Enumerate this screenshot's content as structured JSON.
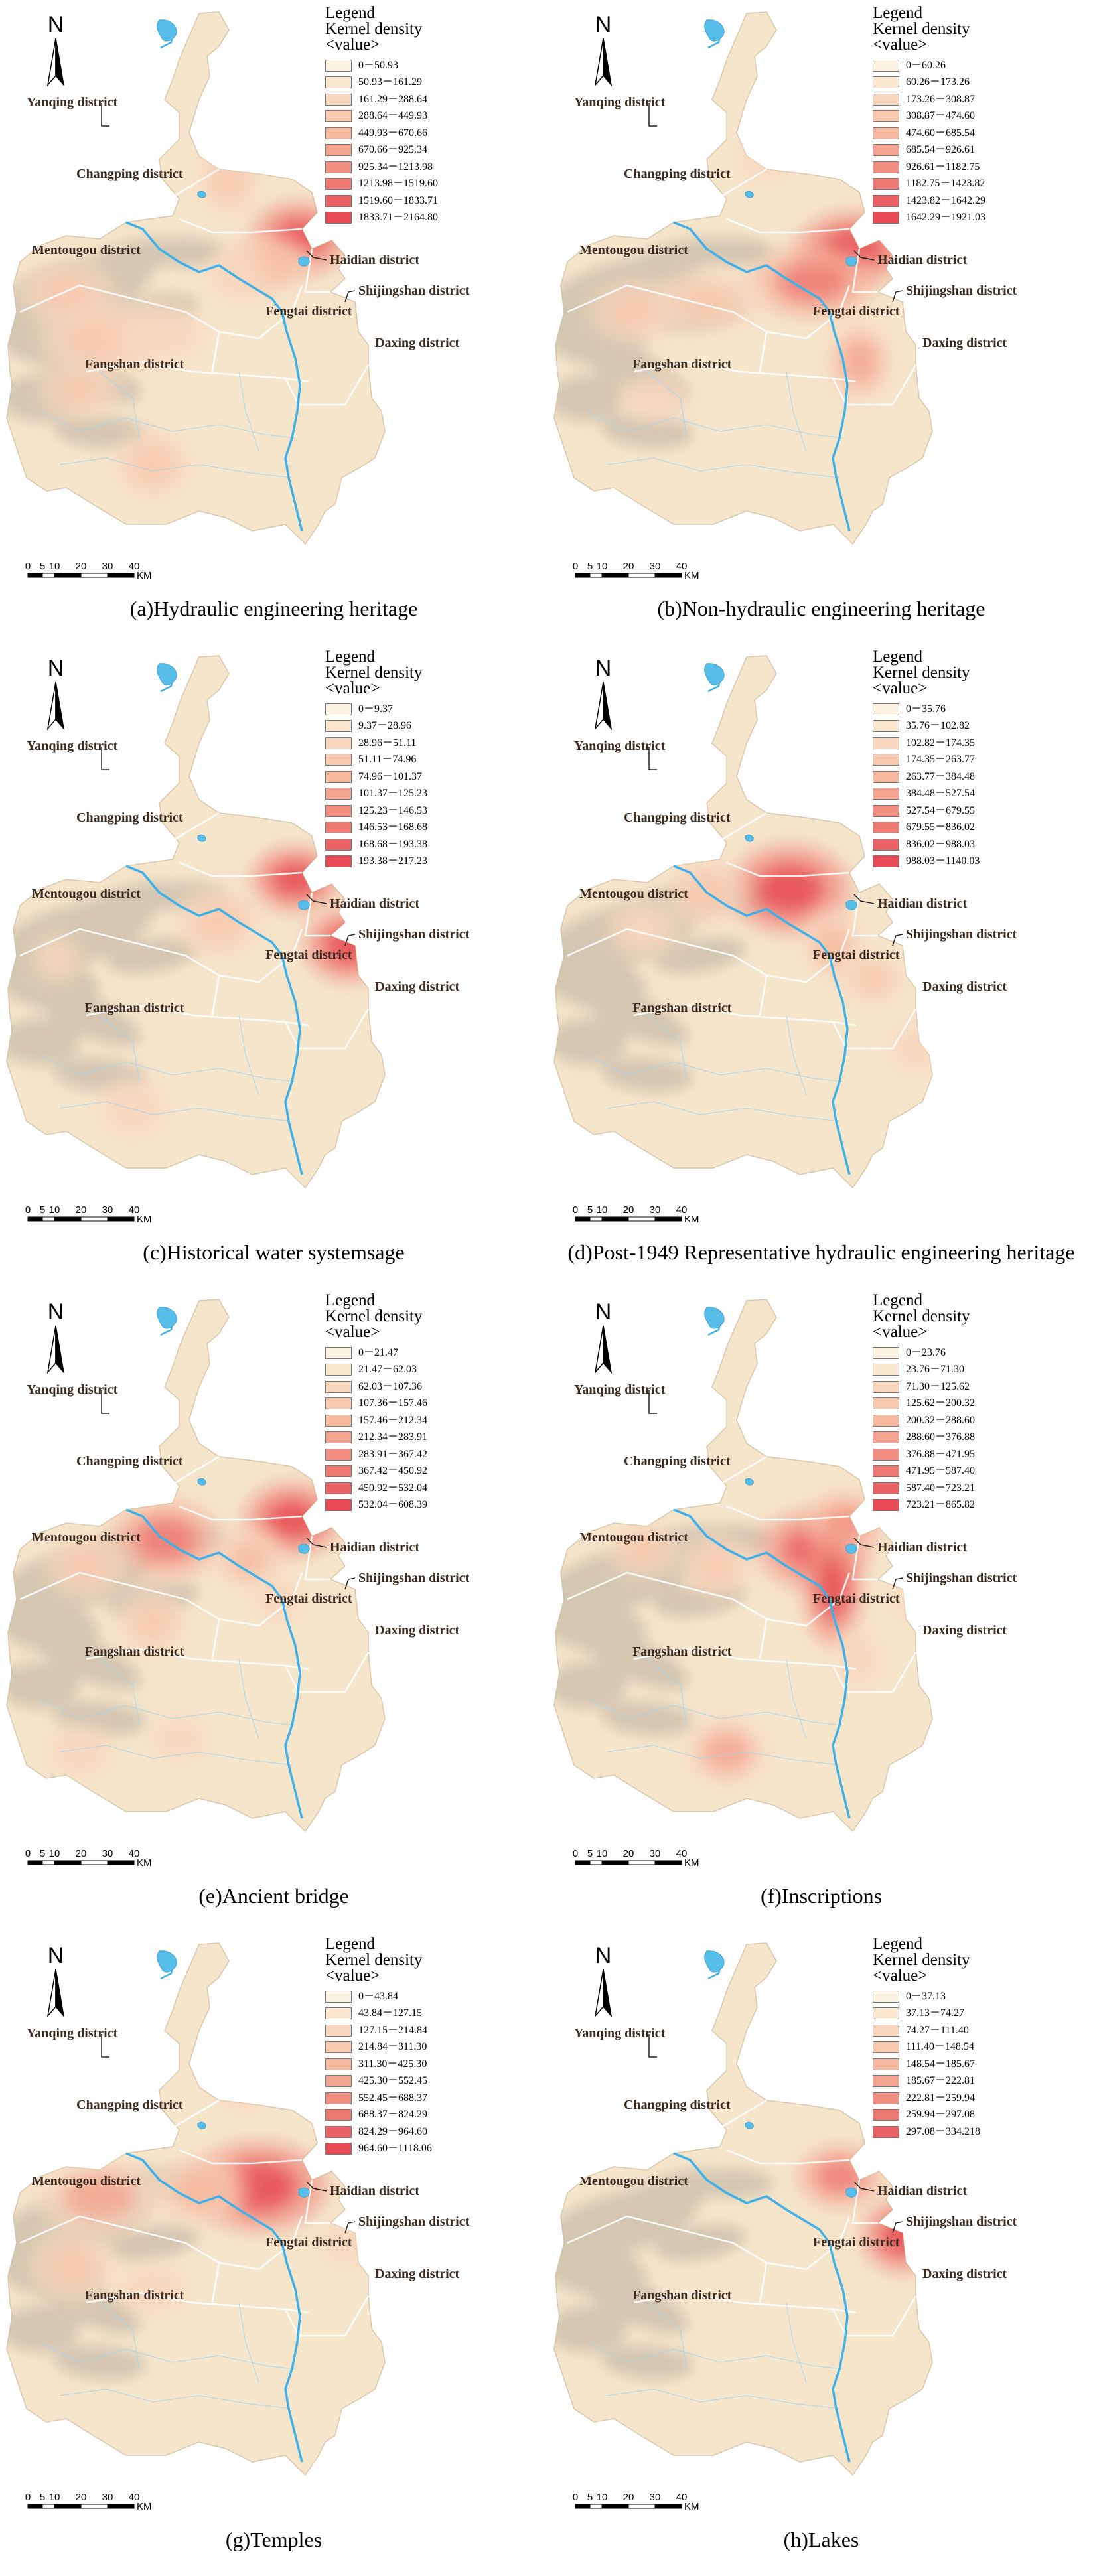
{
  "districts": {
    "yanqing": "Yanqing district",
    "changping": "Changping district",
    "mentougou": "Mentougou district",
    "haidian": "Haidian district",
    "shijingshan": "Shijingshan district",
    "fengtai": "Fengtai district",
    "fangshan": "Fangshan district",
    "daxing": "Daxing district"
  },
  "north_label": "N",
  "scale": {
    "ticks": [
      "0",
      "5",
      "10",
      "20",
      "30",
      "40"
    ],
    "unit": "KM"
  },
  "legend_header": {
    "line1": "Legend",
    "line2": "Kernel density",
    "line3": "<value>"
  },
  "colors": {
    "ramp": [
      "#fbf2e2",
      "#fbe6cf",
      "#f9d7be",
      "#f8c9ae",
      "#f6b89f",
      "#f3a491",
      "#f19082",
      "#ee7a73",
      "#eb6264",
      "#e84b55"
    ],
    "river": "#3fb0e8",
    "lake": "#57bde9",
    "base": "#f5e5cb",
    "mountain": "#c9bca9",
    "border": "#ffffff"
  },
  "panels": [
    {
      "caption": "(a)Hydraulic engineering heritage",
      "legend": [
        "0－50.93",
        "50.93－161.29",
        "161.29－288.64",
        "288.64－449.93",
        "449.93－670.66",
        "670.66－925.34",
        "925.34－1213.98",
        "1213.98－1519.60",
        "1519.60－1833.71",
        "1833.71－2164.80"
      ]
    },
    {
      "caption": "(b)Non-hydraulic engineering heritage",
      "legend": [
        "0－60.26",
        "60.26－173.26",
        "173.26－308.87",
        "308.87－474.60",
        "474.60－685.54",
        "685.54－926.61",
        "926.61－1182.75",
        "1182.75－1423.82",
        "1423.82－1642.29",
        "1642.29－1921.03"
      ]
    },
    {
      "caption": "(c)Historical water systemsage",
      "legend": [
        "0－9.37",
        "9.37－28.96",
        "28.96－51.11",
        "51.11－74.96",
        "74.96－101.37",
        "101.37－125.23",
        "125.23－146.53",
        "146.53－168.68",
        "168.68－193.38",
        "193.38－217.23"
      ]
    },
    {
      "caption": "(d)Post-1949 Representative hydraulic engineering heritage",
      "legend": [
        "0－35.76",
        "35.76－102.82",
        "102.82－174.35",
        "174.35－263.77",
        "263.77－384.48",
        "384.48－527.54",
        "527.54－679.55",
        "679.55－836.02",
        "836.02－988.03",
        "988.03－1140.03"
      ]
    },
    {
      "caption": "(e)Ancient bridge",
      "legend": [
        "0－21.47",
        "21.47－62.03",
        "62.03－107.36",
        "107.36－157.46",
        "157.46－212.34",
        "212.34－283.91",
        "283.91－367.42",
        "367.42－450.92",
        "450.92－532.04",
        "532.04－608.39"
      ]
    },
    {
      "caption": "(f)Inscriptions",
      "legend": [
        "0－23.76",
        "23.76－71.30",
        "71.30－125.62",
        "125.62－200.32",
        "200.32－288.60",
        "288.60－376.88",
        "376.88－471.95",
        "471.95－587.40",
        "587.40－723.21",
        "723.21－865.82"
      ]
    },
    {
      "caption": "(g)Temples",
      "legend": [
        "0－43.84",
        "43.84－127.15",
        "127.15－214.84",
        "214.84－311.30",
        "311.30－425.30",
        "425.30－552.45",
        "552.45－688.37",
        "688.37－824.29",
        "824.29－964.60",
        "964.60－1118.06"
      ]
    },
    {
      "caption": "(h)Lakes",
      "legend": [
        "0－37.13",
        "37.13－74.27",
        "74.27－111.40",
        "111.40－148.54",
        "148.54－185.67",
        "185.67－222.81",
        "222.81－259.94",
        "259.94－297.08",
        "297.08－334.218"
      ]
    }
  ]
}
